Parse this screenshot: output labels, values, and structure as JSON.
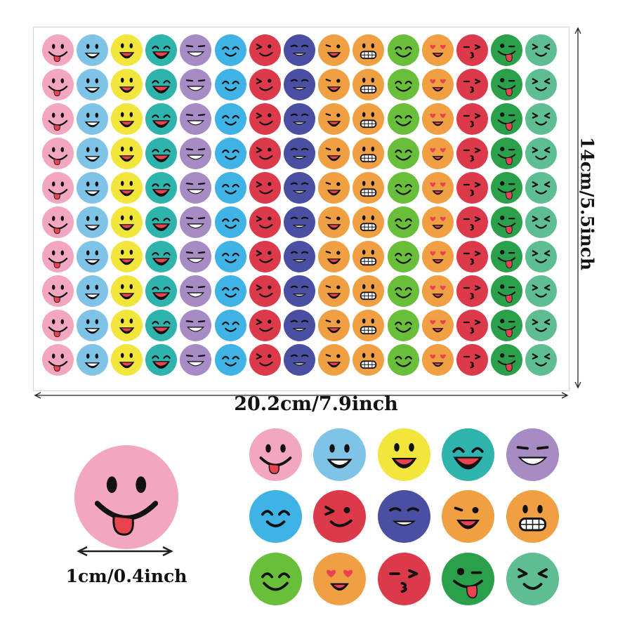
{
  "sheet": {
    "rows": 10,
    "columns": [
      {
        "bg": "#f3a6c0",
        "face": "tongue"
      },
      {
        "bg": "#7fc3e6",
        "face": "smile"
      },
      {
        "bg": "#f2e53c",
        "face": "bigsmile"
      },
      {
        "bg": "#2fb3ad",
        "face": "laugh"
      },
      {
        "bg": "#a78bc4",
        "face": "grin"
      },
      {
        "bg": "#3fb3e6",
        "face": "happy"
      },
      {
        "bg": "#dc3a4a",
        "face": "wink"
      },
      {
        "bg": "#4a4fa2",
        "face": "smirk"
      },
      {
        "bg": "#f0a043",
        "face": "cheeky"
      },
      {
        "bg": "#f0a043",
        "face": "teeth"
      },
      {
        "bg": "#69bf3a",
        "face": "content"
      },
      {
        "bg": "#f0a043",
        "face": "hearteyes"
      },
      {
        "bg": "#dc3a4a",
        "face": "kiss"
      },
      {
        "bg": "#2aa04a",
        "face": "silly"
      },
      {
        "bg": "#5fbd92",
        "face": "squint"
      }
    ]
  },
  "dimensions": {
    "width_label": "20.2cm/7.9inch",
    "height_label": "14cm/5.5inch",
    "sticker_size_label": "1cm/0.4inch"
  },
  "colors": {
    "feature": "#111111",
    "tongue": "#e8434f",
    "heart": "#e8434f",
    "teeth": "#ffffff",
    "mouth_fill": "#e8434f"
  }
}
